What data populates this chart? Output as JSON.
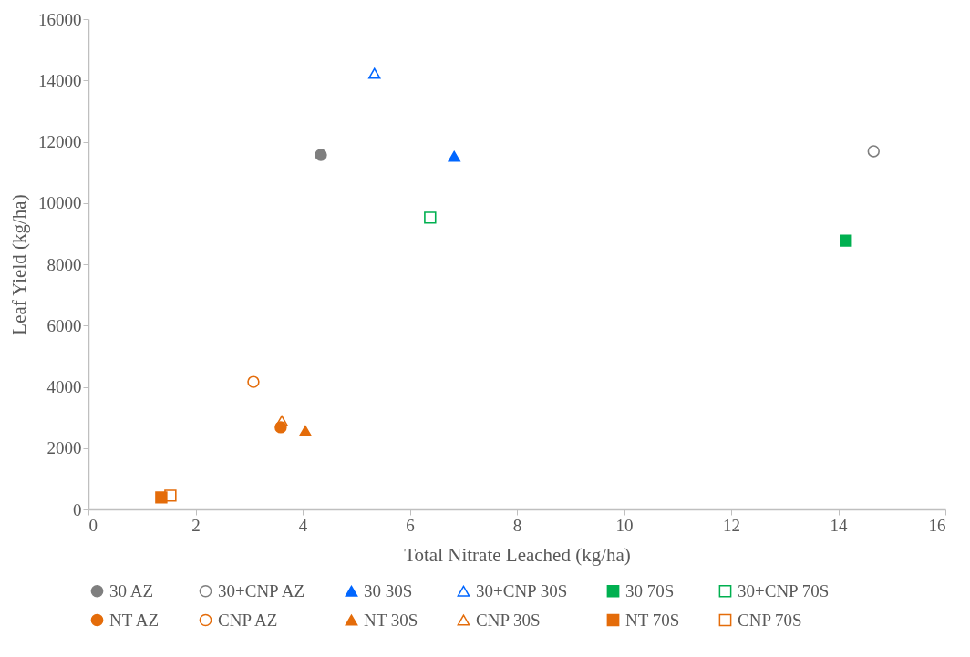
{
  "chart_data": {
    "type": "scatter",
    "xlabel": "Total Nitrate Leached (kg/ha)",
    "ylabel": "Leaf Yield (kg/ha)",
    "xlim": [
      0,
      16
    ],
    "xticks": [
      0,
      2,
      4,
      6,
      8,
      10,
      12,
      14,
      16
    ],
    "ylim": [
      0,
      16000
    ],
    "yticks": [
      0,
      2000,
      4000,
      6000,
      8000,
      10000,
      12000,
      14000,
      16000
    ],
    "grid": false,
    "legend": "bottom",
    "series": [
      {
        "name": "30 AZ",
        "color": "#7f7f7f",
        "marker": "circle",
        "x": [
          4.34
        ],
        "values": [
          11570
        ]
      },
      {
        "name": "30+CNP AZ",
        "color": "#7f7f7f",
        "marker": "circle-open",
        "x": [
          14.66
        ],
        "values": [
          11690
        ]
      },
      {
        "name": "30 30S",
        "color": "#0066ff",
        "marker": "triangle",
        "x": [
          6.83
        ],
        "values": [
          11520
        ]
      },
      {
        "name": "30+CNP 30S",
        "color": "#0066ff",
        "marker": "triangle-open",
        "x": [
          5.34
        ],
        "values": [
          14230
        ]
      },
      {
        "name": "30 70S",
        "color": "#00b050",
        "marker": "square",
        "x": [
          14.14
        ],
        "values": [
          8770
        ]
      },
      {
        "name": "30+CNP 70S",
        "color": "#00b050",
        "marker": "square-open",
        "x": [
          6.38
        ],
        "values": [
          9520
        ]
      },
      {
        "name": "NT AZ",
        "color": "#e46c0a",
        "marker": "circle",
        "x": [
          3.59
        ],
        "values": [
          2680
        ]
      },
      {
        "name": "CNP AZ",
        "color": "#e46c0a",
        "marker": "circle-open",
        "x": [
          3.08
        ],
        "values": [
          4160
        ]
      },
      {
        "name": "NT 30S",
        "color": "#e46c0a",
        "marker": "triangle",
        "x": [
          4.05
        ],
        "values": [
          2560
        ]
      },
      {
        "name": "CNP 30S",
        "color": "#e46c0a",
        "marker": "triangle-open",
        "x": [
          3.61
        ],
        "values": [
          2890
        ]
      },
      {
        "name": "NT 70S",
        "color": "#e46c0a",
        "marker": "square",
        "x": [
          1.36
        ],
        "values": [
          390
        ]
      },
      {
        "name": "CNP 70S",
        "color": "#e46c0a",
        "marker": "square-open",
        "x": [
          1.53
        ],
        "values": [
          450
        ]
      }
    ]
  }
}
